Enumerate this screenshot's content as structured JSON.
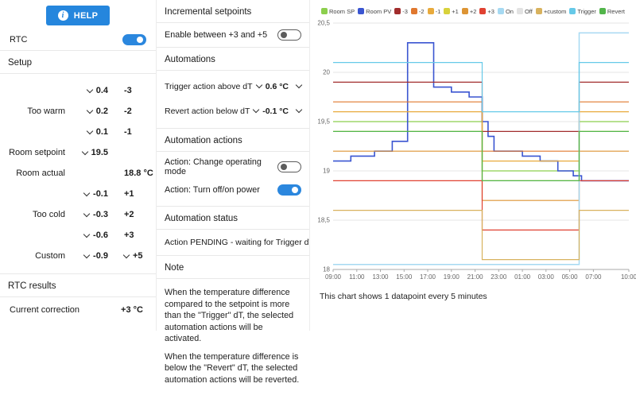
{
  "colors": {
    "accent": "#2b87de",
    "divider": "#e8e8e8"
  },
  "left_panel": {
    "help_button": {
      "label": "HELP"
    },
    "rtc": {
      "label": "RTC",
      "enabled": true
    },
    "setup": {
      "title": "Setup",
      "rows": [
        {
          "label": "",
          "dropdown": "0.4",
          "value": "-3"
        },
        {
          "label": "Too warm",
          "dropdown": "0.2",
          "value": "-2"
        },
        {
          "label": "",
          "dropdown": "0.1",
          "value": "-1"
        },
        {
          "label": "Room setpoint",
          "dropdown": "19.5",
          "value": ""
        },
        {
          "label": "Room actual",
          "dropdown": "",
          "value": "18.8 °C"
        },
        {
          "label": "",
          "dropdown": "-0.1",
          "value": "+1"
        },
        {
          "label": "Too cold",
          "dropdown": "-0.3",
          "value": "+2"
        },
        {
          "label": "",
          "dropdown": "-0.6",
          "value": "+3"
        },
        {
          "label": "Custom",
          "dropdown": "-0.9",
          "value": "+5"
        }
      ]
    },
    "results": {
      "title": "RTC results",
      "row": {
        "label": "Current correction",
        "value": "+3 °C"
      }
    }
  },
  "middle_panel": {
    "incremental": {
      "title": "Incremental setpoints",
      "enable_label": "Enable between +3 and +5",
      "enabled": false
    },
    "automations": {
      "title": "Automations",
      "rows": [
        {
          "label": "Trigger action above dT",
          "value": "0.6 °C"
        },
        {
          "label": "Revert action below dT",
          "value": "-0.1 °C"
        }
      ]
    },
    "automation_actions": {
      "title": "Automation actions",
      "rows": [
        {
          "label": "Action: Change operating mode",
          "enabled": false
        },
        {
          "label": "Action: Turn off/on power",
          "enabled": true
        }
      ]
    },
    "automation_status": {
      "title": "Automation status",
      "text": "Action PENDING - waiting for Trigger dT"
    },
    "note": {
      "title": "Note",
      "paragraphs": [
        "When the temperature difference compared to the setpoint is more than the \"Trigger\" dT, the selected automation actions will be activated.",
        "When the temperature difference is below the \"Revert\" dT, the selected automation actions will be reverted."
      ]
    }
  },
  "chart_caption": "This chart shows 1 datapoint every 5 minutes",
  "chart_data": {
    "type": "line",
    "step": "after",
    "x_unit": "hours_since_09:00",
    "xlim": [
      0,
      25
    ],
    "ylim": [
      18,
      20.5
    ],
    "grid": "horizontal",
    "legend_position": "top",
    "xticks": [
      {
        "v": 0,
        "label": "09:00"
      },
      {
        "v": 2,
        "label": "11:00"
      },
      {
        "v": 4,
        "label": "13:00"
      },
      {
        "v": 6,
        "label": "15:00"
      },
      {
        "v": 8,
        "label": "17:00"
      },
      {
        "v": 10,
        "label": "19:00"
      },
      {
        "v": 12,
        "label": "21:00"
      },
      {
        "v": 14,
        "label": "23:00"
      },
      {
        "v": 16,
        "label": "01:00"
      },
      {
        "v": 18,
        "label": "03:00"
      },
      {
        "v": 20,
        "label": "05:00"
      },
      {
        "v": 22,
        "label": "07:00"
      },
      {
        "v": 25,
        "label": "10:00"
      }
    ],
    "yticks": [
      {
        "v": 20.5,
        "label": "20,5"
      },
      {
        "v": 20,
        "label": "20"
      },
      {
        "v": 19.5,
        "label": "19,5"
      },
      {
        "v": 19,
        "label": "19"
      },
      {
        "v": 18.5,
        "label": "18,5"
      },
      {
        "v": 18,
        "label": "18"
      }
    ],
    "series": [
      {
        "name": "Room SP",
        "color": "#8ccf4d",
        "width": 1.3,
        "points": [
          [
            0,
            19.5
          ],
          [
            12.6,
            19.0
          ],
          [
            20.8,
            19.5
          ]
        ]
      },
      {
        "name": "Room PV",
        "color": "#3a55d1",
        "width": 1.6,
        "points": [
          [
            0,
            19.1
          ],
          [
            1.5,
            19.15
          ],
          [
            3.5,
            19.2
          ],
          [
            5,
            19.3
          ],
          [
            6.3,
            20.3
          ],
          [
            8.5,
            19.85
          ],
          [
            10,
            19.8
          ],
          [
            11.5,
            19.75
          ],
          [
            12.6,
            19.5
          ],
          [
            13.1,
            19.35
          ],
          [
            13.6,
            19.2
          ],
          [
            16,
            19.15
          ],
          [
            17.5,
            19.1
          ],
          [
            19,
            19.0
          ],
          [
            20.3,
            18.95
          ],
          [
            21,
            18.9
          ]
        ]
      },
      {
        "name": "-3",
        "color": "#a12d2d",
        "points": [
          [
            0,
            19.9
          ],
          [
            12.6,
            19.4
          ],
          [
            20.8,
            19.9
          ]
        ]
      },
      {
        "name": "-2",
        "color": "#e0782f",
        "points": [
          [
            0,
            19.7
          ],
          [
            12.6,
            19.2
          ],
          [
            20.8,
            19.7
          ]
        ]
      },
      {
        "name": "-1",
        "color": "#e8aa3c",
        "points": [
          [
            0,
            19.6
          ],
          [
            12.6,
            19.1
          ],
          [
            20.8,
            19.6
          ]
        ]
      },
      {
        "name": "+1",
        "color": "#d8d23b",
        "points": [
          [
            0,
            19.4
          ],
          [
            12.6,
            18.9
          ],
          [
            20.8,
            19.4
          ]
        ]
      },
      {
        "name": "+2",
        "color": "#dd9434",
        "points": [
          [
            0,
            19.2
          ],
          [
            12.6,
            18.7
          ],
          [
            20.8,
            19.2
          ]
        ]
      },
      {
        "name": "+3",
        "color": "#e04131",
        "points": [
          [
            0,
            18.9
          ],
          [
            12.6,
            18.4
          ],
          [
            20.8,
            18.9
          ]
        ]
      },
      {
        "name": "On",
        "color": "#a6d9f2",
        "width": 1.5,
        "points": [
          [
            0,
            18.05
          ],
          [
            20.8,
            20.4
          ]
        ]
      },
      {
        "name": "Off",
        "color": "#e2e2e2",
        "points": []
      },
      {
        "name": "+custom",
        "color": "#d8b25e",
        "points": [
          [
            0,
            18.6
          ],
          [
            12.6,
            18.1
          ],
          [
            20.8,
            18.6
          ]
        ]
      },
      {
        "name": "Trigger",
        "color": "#66c9e8",
        "points": [
          [
            0,
            20.1
          ],
          [
            12.6,
            19.6
          ],
          [
            20.8,
            20.1
          ]
        ]
      },
      {
        "name": "Revert",
        "color": "#52b54a",
        "points": [
          [
            0,
            19.4
          ],
          [
            12.6,
            18.9
          ],
          [
            20.8,
            19.4
          ]
        ]
      }
    ]
  }
}
